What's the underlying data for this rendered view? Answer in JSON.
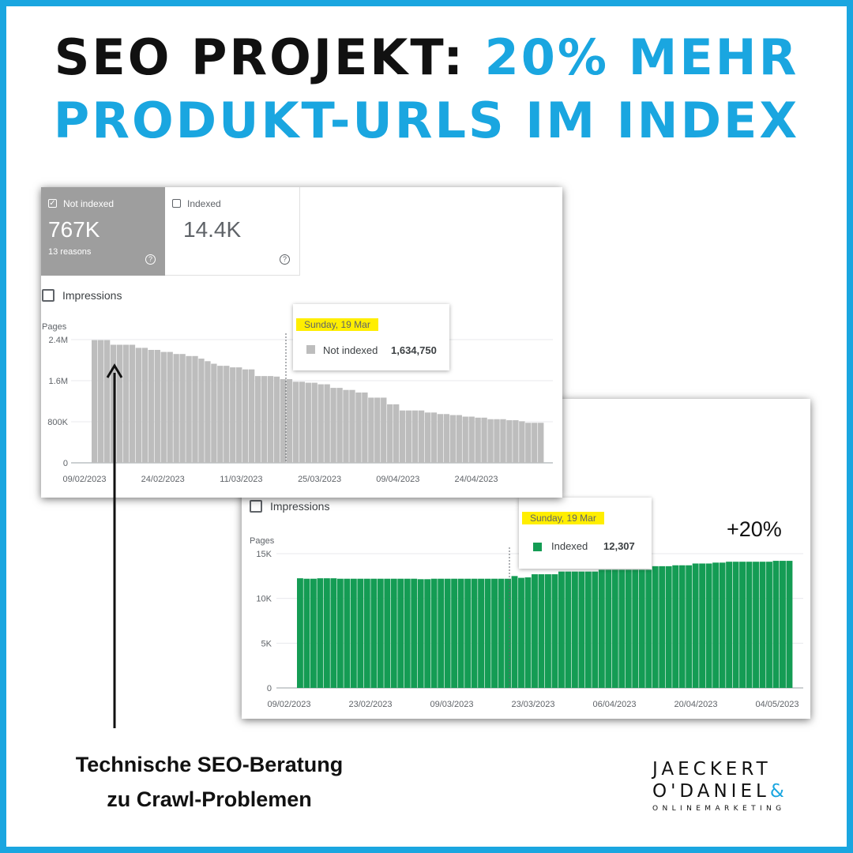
{
  "header": {
    "line1_dark": "SEO PROJEKT:",
    "line1_blue": "20% MEHR",
    "line2": "PRODUKT-URLS IM INDEX"
  },
  "colors": {
    "accent": "#1aa6e0",
    "not_indexed": "#bdbdbd",
    "indexed": "#149c54",
    "highlight": "#ffee00"
  },
  "gray_panel": {
    "card_not_indexed": {
      "label": "Not indexed",
      "value": "767K",
      "sub": "13 reasons",
      "checked": true
    },
    "card_indexed": {
      "label": "Indexed",
      "value": "14.4K"
    },
    "impressions_label": "Impressions",
    "tooltip": {
      "date": "Sunday, 19 Mar",
      "series": "Not indexed",
      "value": "1,634,750"
    }
  },
  "green_panel": {
    "impressions_label": "Impressions",
    "tooltip": {
      "date": "Sunday, 19 Mar",
      "series": "Indexed",
      "value": "12,307"
    },
    "change_label": "+20%"
  },
  "caption": {
    "line1": "Technische SEO-Beratung",
    "line2": "zu Crawl-Problemen"
  },
  "logo": {
    "line1": "JAECKERT",
    "line2": "O'DANIEL",
    "amp": "&",
    "line3": "ONLINEMARKETING"
  },
  "chart_data": [
    {
      "type": "bar",
      "series_name": "Not indexed",
      "ylabel": "Pages",
      "ylim": [
        0,
        2400000
      ],
      "yticks": [
        "0",
        "800K",
        "1.6M",
        "2.4M"
      ],
      "xticks": [
        "09/02/2023",
        "24/02/2023",
        "11/03/2023",
        "25/03/2023",
        "09/04/2023",
        "24/04/2023"
      ],
      "values": [
        2390000,
        2390000,
        2390000,
        2300000,
        2300000,
        2300000,
        2300000,
        2240000,
        2240000,
        2200000,
        2200000,
        2160000,
        2160000,
        2120000,
        2120000,
        2080000,
        2080000,
        2030000,
        1980000,
        1930000,
        1890000,
        1890000,
        1860000,
        1860000,
        1820000,
        1820000,
        1690000,
        1690000,
        1690000,
        1680000,
        1630000,
        1630000,
        1580000,
        1580000,
        1560000,
        1560000,
        1530000,
        1530000,
        1460000,
        1460000,
        1420000,
        1420000,
        1370000,
        1370000,
        1270000,
        1270000,
        1270000,
        1140000,
        1140000,
        1020000,
        1020000,
        1020000,
        1020000,
        980000,
        980000,
        950000,
        950000,
        930000,
        930000,
        900000,
        900000,
        880000,
        880000,
        850000,
        850000,
        850000,
        830000,
        830000,
        810000,
        780000,
        780000,
        780000
      ]
    },
    {
      "type": "bar",
      "series_name": "Indexed",
      "ylabel": "Pages",
      "ylim": [
        0,
        15000
      ],
      "yticks": [
        "0",
        "5K",
        "10K",
        "15K"
      ],
      "xticks": [
        "09/02/2023",
        "23/02/2023",
        "09/03/2023",
        "23/03/2023",
        "06/04/2023",
        "20/04/2023",
        "04/05/2023"
      ],
      "values": [
        12250,
        12200,
        12200,
        12250,
        12250,
        12250,
        12200,
        12200,
        12200,
        12200,
        12200,
        12200,
        12200,
        12200,
        12200,
        12200,
        12200,
        12200,
        12150,
        12150,
        12200,
        12200,
        12200,
        12200,
        12200,
        12200,
        12200,
        12200,
        12200,
        12200,
        12200,
        12200,
        12500,
        12300,
        12350,
        12700,
        12700,
        12700,
        12700,
        13000,
        13000,
        13000,
        13000,
        13000,
        13000,
        13200,
        13200,
        13200,
        13200,
        13200,
        13200,
        13200,
        13200,
        13600,
        13600,
        13600,
        13700,
        13700,
        13700,
        13900,
        13900,
        13900,
        14000,
        14000,
        14100,
        14100,
        14100,
        14100,
        14100,
        14100,
        14100,
        14200,
        14200,
        14200
      ]
    }
  ]
}
